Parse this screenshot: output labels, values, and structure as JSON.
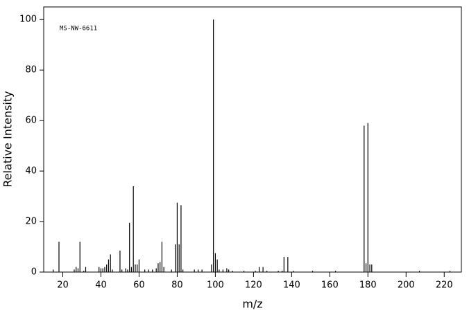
{
  "chart_data": {
    "type": "stem",
    "annotation": "MS-NW-6611",
    "xlabel": "m/z",
    "ylabel": "Relative Intensity",
    "color": "#000000",
    "x": [
      15,
      18,
      26,
      27,
      28,
      29,
      31,
      32,
      39,
      40,
      41,
      42,
      43,
      44,
      45,
      46,
      50,
      51,
      53,
      54,
      55,
      56,
      57,
      58,
      59,
      60,
      63,
      65,
      67,
      69,
      70,
      71,
      72,
      73,
      77,
      79,
      80,
      81,
      82,
      83,
      89,
      91,
      93,
      98,
      99,
      100,
      101,
      102,
      104,
      106,
      107,
      109,
      115,
      121,
      123,
      125,
      127,
      133,
      135,
      136,
      138,
      141,
      151,
      163,
      178,
      179,
      180,
      181,
      182,
      207,
      223
    ],
    "values": [
      1,
      12,
      1,
      2,
      1.5,
      12,
      0.5,
      2,
      2,
      1.5,
      1.5,
      2,
      3,
      5,
      7,
      1,
      8.5,
      1,
      1.5,
      1,
      19.5,
      2,
      34,
      3,
      3,
      5,
      1,
      1,
      1,
      1.5,
      3.5,
      4,
      12,
      2,
      1,
      11,
      27.5,
      11,
      26.5,
      1,
      1,
      1,
      1,
      3,
      100,
      7.5,
      5,
      1,
      1,
      1.5,
      1,
      0.5,
      0.5,
      0.5,
      2,
      2,
      0.5,
      0.5,
      0.5,
      6,
      6,
      0.5,
      0.5,
      0.5,
      58,
      3.5,
      59,
      3,
      3,
      0.5,
      0.5
    ],
    "xlim": [
      10,
      229
    ],
    "xticks": [
      20,
      40,
      60,
      80,
      100,
      120,
      140,
      160,
      180,
      200,
      220
    ],
    "ylim": [
      0,
      105
    ],
    "yticks": [
      0,
      20,
      40,
      60,
      80,
      100
    ]
  }
}
